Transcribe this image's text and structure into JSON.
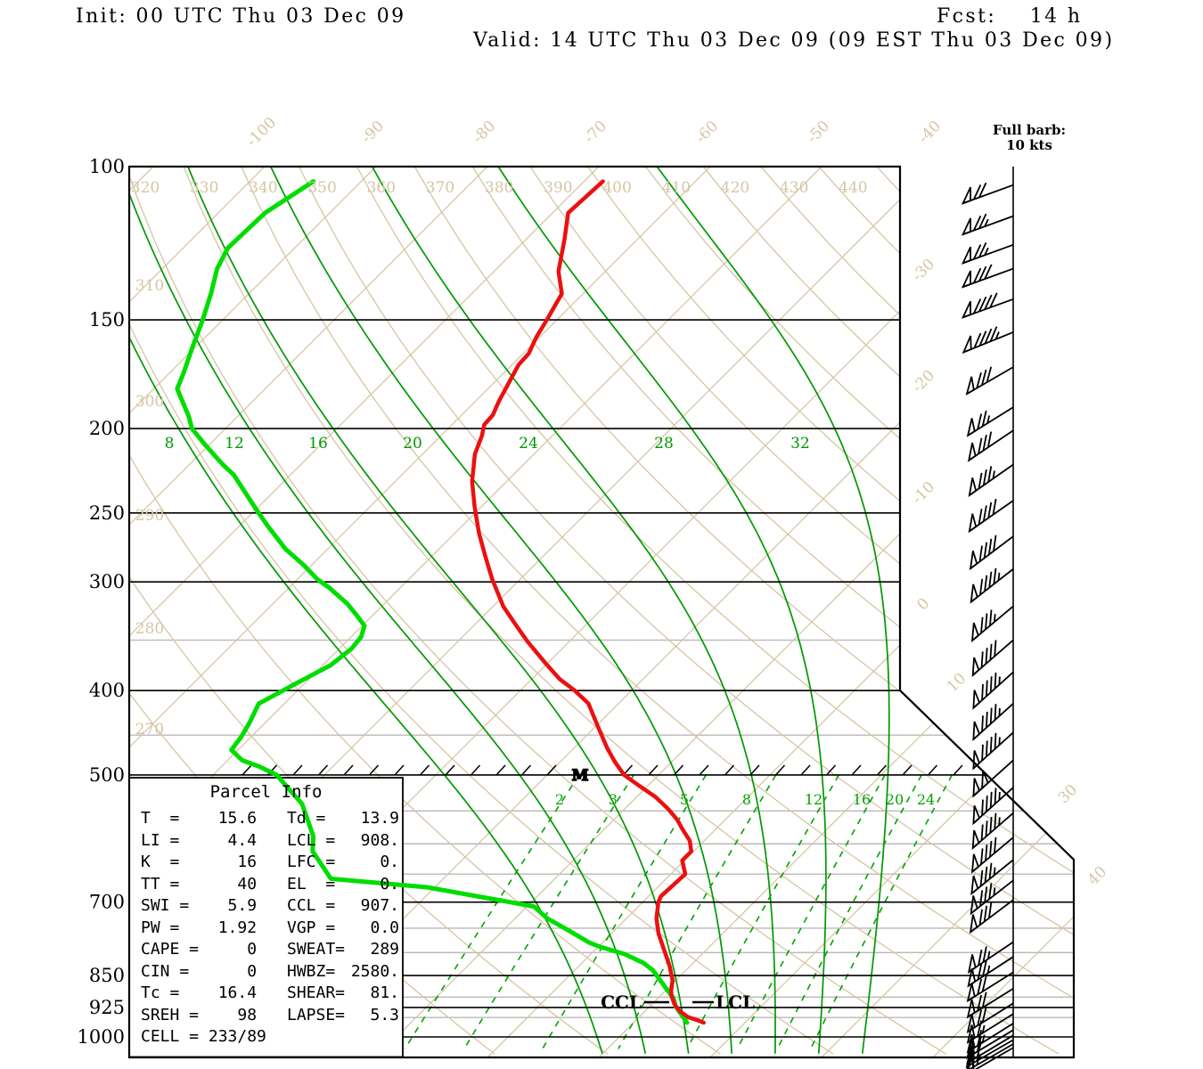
{
  "header": {
    "init": "Init: 00 UTC Thu 03 Dec 09",
    "fcst": "Fcst:    14 h",
    "valid": "Valid: 14 UTC Thu 03 Dec 09 (09 EST Thu 03 Dec 09)"
  },
  "barb_legend": {
    "line1": "Full barb:",
    "line2": "10 kts"
  },
  "parcel": {
    "title": "Parcel Info",
    "rows": [
      {
        "left": "T  =    15.6",
        "rl": "Td =",
        "rv": "13.9"
      },
      {
        "left": "LI =     4.4",
        "rl": "LCL =",
        "rv": "908."
      },
      {
        "left": "K  =      16",
        "rl": "LFC =",
        "rv": "0."
      },
      {
        "left": "TT =      40",
        "rl": "EL  =",
        "rv": "0."
      },
      {
        "left": "SWI =    5.9",
        "rl": "CCL =",
        "rv": "907."
      },
      {
        "left": "PW =    1.92",
        "rl": "VGP =",
        "rv": "0.0"
      },
      {
        "left": "CAPE =     0",
        "rl": "SWEAT=",
        "rv": "289"
      },
      {
        "left": "CIN =      0",
        "rl": "HWBZ=",
        "rv": "2580."
      },
      {
        "left": "Tc =    16.4",
        "rl": "SHEAR=",
        "rv": "81."
      },
      {
        "left": "SREH =    98",
        "rl": "LAPSE=",
        "rv": "5.3"
      },
      {
        "left": "CELL = 233/89",
        "rl": "",
        "rv": ""
      }
    ]
  },
  "chart_data": {
    "type": "skewt-logp",
    "pressure_axis_label_unit": "hPa",
    "pressure_major": [
      100,
      150,
      200,
      250,
      300,
      400,
      500,
      700,
      850,
      925,
      1000
    ],
    "pressure_minor": [
      350,
      450,
      550,
      600,
      650,
      750,
      800,
      900,
      950
    ],
    "isotherms": {
      "values": [
        -110,
        -100,
        -90,
        -80,
        -70,
        -60,
        -50,
        -40,
        -30,
        -20,
        -10,
        0,
        10,
        20,
        30,
        40
      ],
      "top_labels": [
        -100,
        -90,
        -80,
        -70,
        -60,
        -50,
        -40
      ],
      "right_labels": [
        -30,
        -20,
        -10,
        0,
        10,
        30,
        40
      ]
    },
    "dry_adiabats": {
      "values": [
        270,
        280,
        290,
        300,
        310,
        320,
        330,
        340,
        350,
        360,
        370,
        380,
        390,
        400,
        410,
        420,
        430,
        440
      ],
      "top_labels": [
        320,
        330,
        340,
        350,
        360,
        370,
        380,
        390,
        400,
        410,
        420,
        430,
        440
      ],
      "left_labels": [
        310,
        300,
        290,
        280,
        270
      ]
    },
    "moist_adiabats": [
      8,
      12,
      16,
      20,
      24,
      28,
      32
    ],
    "mixing_ratio_lines": [
      2,
      3,
      5,
      8,
      12,
      16,
      20,
      24
    ],
    "temperature_profile": [
      [
        104,
        -68.3
      ],
      [
        113,
        -68.6
      ],
      [
        121,
        -66.6
      ],
      [
        132,
        -64.2
      ],
      [
        140,
        -61.9
      ],
      [
        143,
        -61.6
      ],
      [
        150,
        -60.9
      ],
      [
        157,
        -60.3
      ],
      [
        164,
        -59.5
      ],
      [
        169,
        -59.4
      ],
      [
        179,
        -58.5
      ],
      [
        186,
        -57.9
      ],
      [
        193,
        -57.2
      ],
      [
        198,
        -57.1
      ],
      [
        204,
        -56.3
      ],
      [
        214,
        -55.3
      ],
      [
        230,
        -53.1
      ],
      [
        246,
        -50.6
      ],
      [
        264,
        -47.8
      ],
      [
        281,
        -45.1
      ],
      [
        298,
        -42.5
      ],
      [
        320,
        -39.1
      ],
      [
        335,
        -36.5
      ],
      [
        351,
        -33.8
      ],
      [
        372,
        -30.2
      ],
      [
        388,
        -27.5
      ],
      [
        400,
        -25.1
      ],
      [
        414,
        -22.7
      ],
      [
        439,
        -19.9
      ],
      [
        466,
        -17.0
      ],
      [
        483,
        -15.1
      ],
      [
        500,
        -13.1
      ],
      [
        515,
        -10.7
      ],
      [
        530,
        -8.3
      ],
      [
        547,
        -6.1
      ],
      [
        563,
        -4.3
      ],
      [
        577,
        -3.0
      ],
      [
        595,
        -1.3
      ],
      [
        612,
        -0.2
      ],
      [
        627,
        -0.2
      ],
      [
        650,
        1.3
      ],
      [
        689,
        1.1
      ],
      [
        700,
        1.4
      ],
      [
        731,
        2.7
      ],
      [
        760,
        4.2
      ],
      [
        803,
        6.7
      ],
      [
        828,
        8.1
      ],
      [
        861,
        9.7
      ],
      [
        885,
        10.5
      ],
      [
        897,
        11.0
      ],
      [
        917,
        12.0
      ],
      [
        934,
        13.1
      ],
      [
        949,
        14.4
      ],
      [
        958,
        15.7
      ],
      [
        963,
        16.3
      ]
    ],
    "dewpoint_profile": [
      [
        104,
        -94.3
      ],
      [
        113,
        -95.8
      ],
      [
        124,
        -96.0
      ],
      [
        131,
        -95.1
      ],
      [
        140,
        -93.4
      ],
      [
        150,
        -91.8
      ],
      [
        161,
        -90.3
      ],
      [
        173,
        -88.7
      ],
      [
        180,
        -87.9
      ],
      [
        194,
        -84.3
      ],
      [
        200,
        -83.0
      ],
      [
        208,
        -80.6
      ],
      [
        220,
        -77.0
      ],
      [
        226,
        -75.1
      ],
      [
        248,
        -69.9
      ],
      [
        259,
        -67.4
      ],
      [
        275,
        -63.8
      ],
      [
        287,
        -60.7
      ],
      [
        298,
        -58.2
      ],
      [
        305,
        -56.3
      ],
      [
        318,
        -53.3
      ],
      [
        328,
        -51.4
      ],
      [
        337,
        -49.8
      ],
      [
        347,
        -49.1
      ],
      [
        358,
        -48.9
      ],
      [
        374,
        -49.3
      ],
      [
        389,
        -50.5
      ],
      [
        414,
        -52.3
      ],
      [
        436,
        -51.4
      ],
      [
        452,
        -50.9
      ],
      [
        468,
        -50.6
      ],
      [
        481,
        -48.7
      ],
      [
        489,
        -46.6
      ],
      [
        500,
        -44.3
      ],
      [
        540,
        -39.4
      ],
      [
        588,
        -35.5
      ],
      [
        612,
        -34.2
      ],
      [
        658,
        -30.1
      ],
      [
        673,
        -20.7
      ],
      [
        708,
        -9.4
      ],
      [
        731,
        -7.1
      ],
      [
        757,
        -3.8
      ],
      [
        779,
        -1.2
      ],
      [
        788,
        0.2
      ],
      [
        803,
        3.0
      ],
      [
        822,
        5.5
      ],
      [
        838,
        7.0
      ],
      [
        861,
        8.6
      ],
      [
        885,
        10.2
      ],
      [
        901,
        11.3
      ],
      [
        922,
        12.3
      ],
      [
        940,
        13.4
      ],
      [
        963,
        14.8
      ]
    ],
    "wind_barbs": [
      {
        "p": 105,
        "spd": 70,
        "dir": 250
      },
      {
        "p": 114,
        "spd": 75,
        "dir": 250
      },
      {
        "p": 123,
        "spd": 75,
        "dir": 250
      },
      {
        "p": 131,
        "spd": 80,
        "dir": 250
      },
      {
        "p": 142,
        "spd": 90,
        "dir": 250
      },
      {
        "p": 155,
        "spd": 95,
        "dir": 248
      },
      {
        "p": 170,
        "spd": 80,
        "dir": 240
      },
      {
        "p": 189,
        "spd": 75,
        "dir": 238
      },
      {
        "p": 201,
        "spd": 80,
        "dir": 236
      },
      {
        "p": 220,
        "spd": 85,
        "dir": 235
      },
      {
        "p": 242,
        "spd": 90,
        "dir": 235
      },
      {
        "p": 266,
        "spd": 90,
        "dir": 233
      },
      {
        "p": 290,
        "spd": 95,
        "dir": 232
      },
      {
        "p": 320,
        "spd": 85,
        "dir": 230
      },
      {
        "p": 350,
        "spd": 90,
        "dir": 229
      },
      {
        "p": 381,
        "spd": 95,
        "dir": 228
      },
      {
        "p": 414,
        "spd": 95,
        "dir": 228
      },
      {
        "p": 447,
        "spd": 95,
        "dir": 228
      },
      {
        "p": 481,
        "spd": 100,
        "dir": 228
      },
      {
        "p": 517,
        "spd": 95,
        "dir": 228
      },
      {
        "p": 553,
        "spd": 95,
        "dir": 229
      },
      {
        "p": 590,
        "spd": 90,
        "dir": 230
      },
      {
        "p": 626,
        "spd": 85,
        "dir": 231
      },
      {
        "p": 661,
        "spd": 85,
        "dir": 232
      },
      {
        "p": 696,
        "spd": 80,
        "dir": 233
      },
      {
        "p": 778,
        "spd": 75,
        "dir": 236
      },
      {
        "p": 809,
        "spd": 75,
        "dir": 237
      },
      {
        "p": 843,
        "spd": 70,
        "dir": 238
      },
      {
        "p": 880,
        "spd": 70,
        "dir": 238
      },
      {
        "p": 915,
        "spd": 70,
        "dir": 238
      },
      {
        "p": 941,
        "spd": 65,
        "dir": 238
      },
      {
        "p": 965,
        "spd": 65,
        "dir": 238
      },
      {
        "p": 982,
        "spd": 60,
        "dir": 239
      },
      {
        "p": 996,
        "spd": 60,
        "dir": 239
      },
      {
        "p": 1008,
        "spd": 55,
        "dir": 240
      },
      {
        "p": 1019,
        "spd": 55,
        "dir": 240
      },
      {
        "p": 1029,
        "spd": 50,
        "dir": 240
      }
    ],
    "markers": {
      "mid_label": "M",
      "ccl_label": "CCL",
      "lcl_label": "LCL",
      "ccl_p": 907,
      "lcl_p": 908
    },
    "colors": {
      "temperature": "#ec1010",
      "dewpoint": "#00dd00",
      "moist_adiabat": "#009800",
      "mixing_ratio": "#00a300",
      "tan_lines": "#d6c5a4",
      "minor_grey": "#b8b8b8",
      "frame": "#000000"
    }
  }
}
